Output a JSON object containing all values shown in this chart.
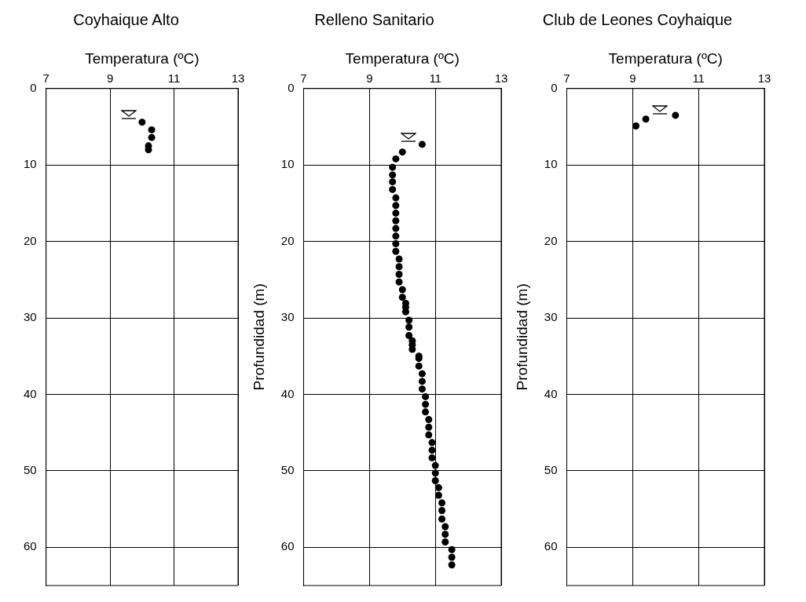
{
  "chart_data": [
    {
      "type": "scatter",
      "title": "Coyhaique Alto",
      "xlabel": "Temperatura (ºC)",
      "xlim": [
        7,
        13
      ],
      "xticks": [
        7,
        9,
        11,
        13
      ],
      "ylim": [
        65,
        0
      ],
      "yticks": [
        0,
        10,
        20,
        30,
        40,
        50,
        60
      ],
      "grid": true,
      "legend": false,
      "marker": "circle",
      "series": [
        {
          "color": "#000000",
          "x": [
            10.0,
            10.3,
            10.3,
            10.2,
            10.2
          ],
          "values": [
            4.4,
            5.4,
            6.4,
            7.5,
            8.0
          ]
        }
      ]
    },
    {
      "type": "scatter",
      "title": "Relleno Sanitario",
      "xlabel": "Temperatura (ºC)",
      "ylabel": "Profundidad (m)",
      "xlim": [
        7,
        13
      ],
      "xticks": [
        7,
        9,
        11,
        13
      ],
      "ylim": [
        65,
        0
      ],
      "yticks": [
        0,
        10,
        20,
        30,
        40,
        50,
        60
      ],
      "grid": true,
      "legend": false,
      "marker": "circle",
      "series": [
        {
          "color": "#000000",
          "x": [
            10.6,
            10.0,
            9.8,
            9.7,
            9.7,
            9.7,
            9.7,
            9.8,
            9.8,
            9.8,
            9.8,
            9.8,
            9.8,
            9.8,
            9.8,
            9.9,
            9.9,
            9.9,
            9.9,
            10.0,
            10.0,
            10.1,
            10.1,
            10.1,
            10.2,
            10.2,
            10.2,
            10.3,
            10.3,
            10.3,
            10.5,
            10.5,
            10.5,
            10.6,
            10.6,
            10.6,
            10.7,
            10.7,
            10.7,
            10.8,
            10.8,
            10.8,
            10.9,
            10.9,
            10.9,
            11.0,
            11.0,
            11.0,
            11.1,
            11.1,
            11.2,
            11.2,
            11.2,
            11.3,
            11.3,
            11.3,
            11.5,
            11.5,
            11.5
          ],
          "values": [
            7.3,
            8.3,
            9.2,
            10.3,
            11.3,
            12.2,
            13.2,
            14.3,
            15.3,
            16.3,
            17.3,
            18.3,
            19.3,
            20.3,
            21.3,
            22.3,
            23.3,
            24.3,
            25.3,
            26.3,
            27.3,
            28.1,
            28.6,
            29.2,
            30.3,
            31.2,
            32.3,
            33.0,
            33.5,
            34.1,
            35.0,
            35.3,
            36.3,
            37.3,
            38.3,
            39.3,
            40.3,
            41.3,
            42.3,
            43.3,
            44.3,
            45.3,
            46.3,
            47.3,
            48.3,
            49.3,
            50.3,
            51.3,
            52.2,
            53.2,
            54.2,
            55.2,
            56.3,
            57.3,
            58.3,
            59.3,
            60.3,
            61.3,
            62.3
          ]
        }
      ]
    },
    {
      "type": "scatter",
      "title": "Club de Leones Coyhaique",
      "xlabel": "Temperatura (ºC)",
      "ylabel": "Profundidad (m)",
      "xlim": [
        7,
        13
      ],
      "xticks": [
        7,
        9,
        11,
        13
      ],
      "ylim": [
        65,
        0
      ],
      "yticks": [
        0,
        10,
        20,
        30,
        40,
        50,
        60
      ],
      "grid": true,
      "legend": false,
      "marker": "circle",
      "series": [
        {
          "color": "#000000",
          "x": [
            9.1,
            9.4,
            10.3
          ],
          "values": [
            4.9,
            4.0,
            3.5
          ]
        }
      ]
    }
  ]
}
